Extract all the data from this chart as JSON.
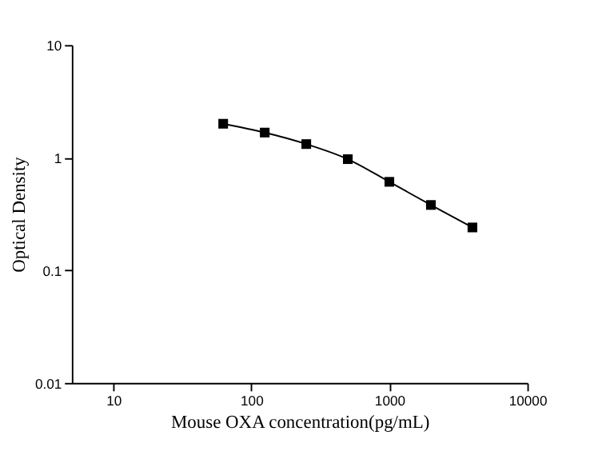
{
  "chart_data": {
    "type": "line",
    "xlabel": "Mouse OXA concentration(pg/mL)",
    "ylabel": "Optical Density",
    "x": [
      62.5,
      125,
      250,
      500,
      1000,
      2000,
      4000
    ],
    "series": [
      {
        "color": "#000000",
        "values": [
          2.0,
          1.67,
          1.32,
          0.97,
          0.61,
          0.38,
          0.24
        ]
      }
    ],
    "log": "xy",
    "xlim": [
      5,
      10000
    ],
    "ylim": [
      0.01,
      10
    ],
    "xticks": [
      10,
      100,
      1000,
      10000
    ],
    "yticks": [
      0.01,
      0.1,
      1,
      10
    ],
    "marker": "square",
    "line_style": "solid",
    "grid": false
  }
}
